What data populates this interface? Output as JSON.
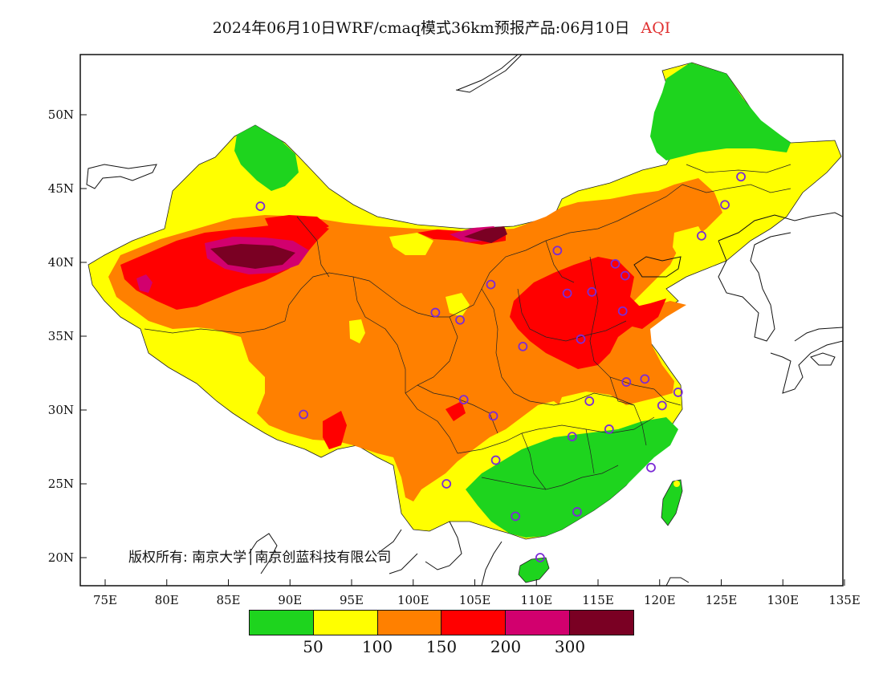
{
  "title": {
    "main": "2024年06月10日WRF/cmaq模式36km预报产品:06月10日",
    "variable": "AQI",
    "variable_color": "#e03030"
  },
  "x_ticks": [
    "75E",
    "80E",
    "85E",
    "90E",
    "95E",
    "100E",
    "105E",
    "110E",
    "115E",
    "120E",
    "125E",
    "130E",
    "135E"
  ],
  "y_ticks": [
    "20N",
    "25N",
    "30N",
    "35N",
    "40N",
    "45N",
    "50N"
  ],
  "legend": {
    "colors": [
      "#1ed41e",
      "#ffff00",
      "#ff8000",
      "#ff0000",
      "#d2006e",
      "#7a0023"
    ],
    "labels": [
      "50",
      "100",
      "150",
      "200",
      "300"
    ]
  },
  "copyright": "版权所有: 南京大学│南京创蓝科技有限公司",
  "stations": [
    {
      "lon": 87.6,
      "lat": 43.8
    },
    {
      "lon": 91.1,
      "lat": 29.7
    },
    {
      "lon": 101.8,
      "lat": 36.6
    },
    {
      "lon": 103.8,
      "lat": 36.1
    },
    {
      "lon": 106.3,
      "lat": 38.5
    },
    {
      "lon": 111.7,
      "lat": 40.8
    },
    {
      "lon": 112.5,
      "lat": 37.9
    },
    {
      "lon": 114.5,
      "lat": 38.0
    },
    {
      "lon": 116.4,
      "lat": 39.9
    },
    {
      "lon": 117.2,
      "lat": 39.1
    },
    {
      "lon": 117.0,
      "lat": 36.7
    },
    {
      "lon": 113.6,
      "lat": 34.8
    },
    {
      "lon": 108.9,
      "lat": 34.3
    },
    {
      "lon": 104.1,
      "lat": 30.7
    },
    {
      "lon": 106.5,
      "lat": 29.6
    },
    {
      "lon": 114.3,
      "lat": 30.6
    },
    {
      "lon": 117.3,
      "lat": 31.9
    },
    {
      "lon": 118.8,
      "lat": 32.1
    },
    {
      "lon": 120.2,
      "lat": 30.3
    },
    {
      "lon": 121.5,
      "lat": 31.2
    },
    {
      "lon": 112.9,
      "lat": 28.2
    },
    {
      "lon": 115.9,
      "lat": 28.7
    },
    {
      "lon": 119.3,
      "lat": 26.1
    },
    {
      "lon": 106.7,
      "lat": 26.6
    },
    {
      "lon": 102.7,
      "lat": 25.0
    },
    {
      "lon": 108.3,
      "lat": 22.8
    },
    {
      "lon": 113.3,
      "lat": 23.1
    },
    {
      "lon": 110.3,
      "lat": 20.0
    },
    {
      "lon": 126.6,
      "lat": 45.8
    },
    {
      "lon": 125.3,
      "lat": 43.9
    },
    {
      "lon": 123.4,
      "lat": 41.8
    }
  ]
}
